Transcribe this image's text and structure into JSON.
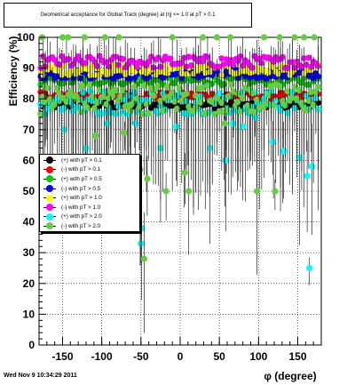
{
  "chart_data": {
    "type": "scatter",
    "title": "Geometrical acceptance for Global Track (degree) at |η| <= 1.0 at pT > 0.1",
    "xlabel": "φ (degree)",
    "ylabel": "Efficiency (%)",
    "xlim": [
      -180,
      180
    ],
    "ylim": [
      0,
      100
    ],
    "xticks": [
      -150,
      -100,
      -50,
      0,
      50,
      100,
      150
    ],
    "yticks": [
      0,
      10,
      20,
      30,
      40,
      50,
      60,
      70,
      80,
      90,
      100
    ],
    "grid": true,
    "legend_position": "left-middle",
    "series": [
      {
        "name": "(+) with pT > 0.1",
        "color": "#000000",
        "base": 78,
        "spread": 1.2,
        "outliers": []
      },
      {
        "name": "(-) with pT > 0.1",
        "color": "#ff0000",
        "base": 81,
        "spread": 1.2,
        "outliers": []
      },
      {
        "name": "(+) with pT > 0.5",
        "color": "#00cc00",
        "base": 86,
        "spread": 1.5,
        "outliers": []
      },
      {
        "name": "(-) with pT > 0.5",
        "color": "#0000ff",
        "base": 88,
        "spread": 1.5,
        "outliers": []
      },
      {
        "name": "(+) with pT > 1.0",
        "color": "#ffff00",
        "base": 89.5,
        "spread": 1.8,
        "outliers": []
      },
      {
        "name": "(-) with pT > 1.0",
        "color": "#ff00ff",
        "base": 92,
        "spread": 2.0,
        "outliers": []
      },
      {
        "name": "(+) with pT > 2.0",
        "color": "#00ffff",
        "base": 79,
        "spread": 4.0,
        "outliers": [
          [
            -170,
            77
          ],
          [
            -148,
            70
          ],
          [
            -137,
            76
          ],
          [
            -120,
            64
          ],
          [
            -103,
            75
          ],
          [
            -93,
            72
          ],
          [
            -66,
            75
          ],
          [
            -57,
            72
          ],
          [
            -50,
            33
          ],
          [
            -49,
            38
          ],
          [
            -25,
            64
          ],
          [
            -5,
            71
          ],
          [
            10,
            75
          ],
          [
            38,
            64
          ],
          [
            58,
            60
          ],
          [
            67,
            72
          ],
          [
            80,
            71
          ],
          [
            96,
            74
          ],
          [
            118,
            66
          ],
          [
            132,
            63
          ],
          [
            152,
            61
          ],
          [
            162,
            55
          ],
          [
            165,
            25
          ],
          [
            168,
            58
          ]
        ]
      },
      {
        "name": "(-) with pT > 2.0",
        "color": "#66cc44",
        "base": 80,
        "spread": 5.0,
        "outliers": [
          [
            -176,
            100
          ],
          [
            -173,
            79
          ],
          [
            -150,
            100
          ],
          [
            -143,
            100
          ],
          [
            -133,
            81
          ],
          [
            -127,
            84
          ],
          [
            -122,
            100
          ],
          [
            -108,
            68
          ],
          [
            -96,
            100
          ],
          [
            -89,
            82
          ],
          [
            -78,
            100
          ],
          [
            -71,
            69
          ],
          [
            -63,
            78
          ],
          [
            -51,
            57
          ],
          [
            -46,
            28
          ],
          [
            -42,
            54
          ],
          [
            -34,
            81
          ],
          [
            -18,
            50
          ],
          [
            -10,
            100
          ],
          [
            6,
            56
          ],
          [
            11,
            50
          ],
          [
            20,
            81
          ],
          [
            29,
            100
          ],
          [
            47,
            100
          ],
          [
            57,
            72
          ],
          [
            64,
            100
          ],
          [
            73,
            79
          ],
          [
            90,
            76
          ],
          [
            98,
            50
          ],
          [
            107,
            100
          ],
          [
            116,
            84
          ],
          [
            121,
            50
          ],
          [
            127,
            100
          ],
          [
            146,
            100
          ],
          [
            158,
            100
          ],
          [
            171,
            100
          ]
        ]
      }
    ]
  },
  "footer": {
    "timestamp": "Wed Nov  9 10:34:29 2011"
  }
}
